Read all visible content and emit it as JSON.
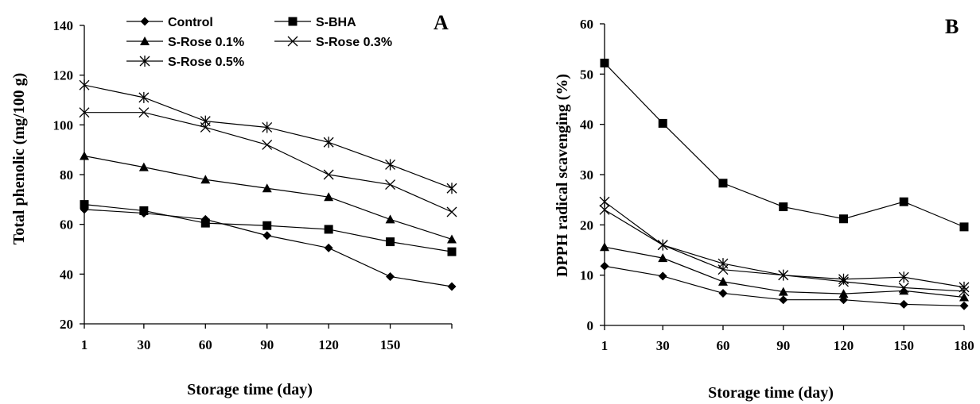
{
  "chart_data": [
    {
      "type": "line",
      "panel_label": "A",
      "xlabel": "Storage time (day)",
      "ylabel": "Total phenolic (mg/100 g)",
      "x": [
        1,
        30,
        60,
        90,
        120,
        150,
        180
      ],
      "x_tick_labels": [
        "1",
        "30",
        "60",
        "90",
        "120",
        "150"
      ],
      "ylim": [
        20,
        140
      ],
      "y_ticks": [
        20,
        40,
        60,
        80,
        100,
        120,
        140
      ],
      "grid": false,
      "legend_position": "top",
      "series": [
        {
          "name": "Control",
          "marker": "diamond",
          "values": [
            66,
            64.5,
            62,
            55.5,
            50.5,
            39,
            35
          ]
        },
        {
          "name": "S-BHA",
          "marker": "square",
          "values": [
            68,
            65.5,
            60.5,
            59.5,
            58,
            53,
            49
          ]
        },
        {
          "name": "S-Rose 0.1%",
          "marker": "triangle",
          "values": [
            87.5,
            83,
            78,
            74.5,
            71,
            62,
            54
          ]
        },
        {
          "name": "S-Rose 0.3%",
          "marker": "x",
          "values": [
            105,
            105,
            99,
            92,
            80,
            76,
            65
          ]
        },
        {
          "name": "S-Rose 0.5%",
          "marker": "asterisk",
          "values": [
            116,
            111,
            101.5,
            99,
            93,
            84,
            74.5
          ]
        }
      ]
    },
    {
      "type": "line",
      "panel_label": "B",
      "xlabel": "Storage time (day)",
      "ylabel": "DPPH radical scavenging (%)",
      "x": [
        1,
        30,
        60,
        90,
        120,
        150,
        180
      ],
      "x_tick_labels": [
        "1",
        "30",
        "60",
        "90",
        "120",
        "150",
        "180"
      ],
      "ylim": [
        0,
        60
      ],
      "y_ticks": [
        0,
        10,
        20,
        30,
        40,
        50,
        60
      ],
      "grid": false,
      "series": [
        {
          "name": "Control",
          "marker": "diamond",
          "values": [
            11.8,
            9.8,
            6.4,
            5.1,
            5.1,
            4.2,
            3.9
          ]
        },
        {
          "name": "S-BHA",
          "marker": "square",
          "values": [
            52.2,
            40.2,
            28.3,
            23.6,
            21.2,
            24.6,
            19.6
          ]
        },
        {
          "name": "S-Rose 0.1%",
          "marker": "triangle",
          "values": [
            15.6,
            13.4,
            8.7,
            6.7,
            6.3,
            6.9,
            5.6
          ]
        },
        {
          "name": "S-Rose 0.3%",
          "marker": "x",
          "values": [
            23,
            16,
            11.1,
            10,
            8.7,
            7.5,
            6.8
          ]
        },
        {
          "name": "S-Rose 0.5%",
          "marker": "asterisk",
          "values": [
            24.6,
            16,
            12.3,
            10,
            9.2,
            9.6,
            7.6
          ]
        }
      ]
    }
  ]
}
